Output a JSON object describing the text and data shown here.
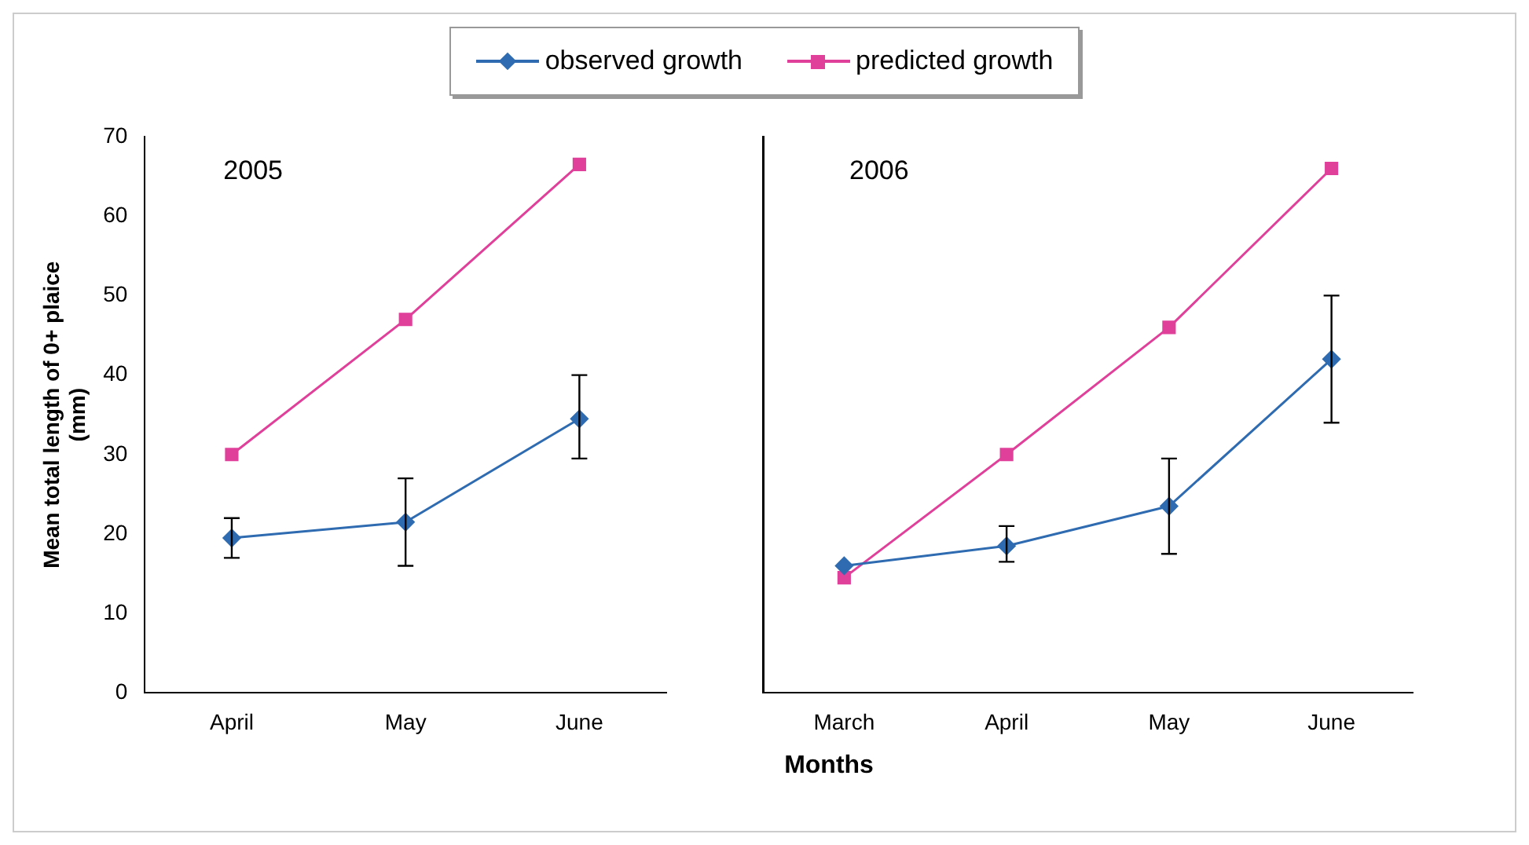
{
  "chart_data": [
    {
      "type": "line",
      "ylabel": "Mean total length of 0+ plaice (mm)",
      "categories": [
        "April",
        "May",
        "June"
      ],
      "series": [
        {
          "name": "observed growth",
          "color": "#2e6bb0",
          "marker": "diamond",
          "values": [
            19.5,
            21.5,
            34.5
          ],
          "errors": [
            [
              17,
              22
            ],
            [
              16,
              27
            ],
            [
              29.5,
              40
            ]
          ]
        },
        {
          "name": "predicted growth",
          "color": "#e0409a",
          "marker": "square",
          "values": [
            30,
            47,
            66.5
          ]
        }
      ],
      "ylim": [
        0,
        70
      ],
      "yticks": [
        0,
        10,
        20,
        30,
        40,
        50,
        60,
        70
      ],
      "grid": false,
      "legend": "top",
      "annotations": [
        "2005"
      ]
    },
    {
      "type": "line",
      "xlabel": "Months",
      "categories": [
        "March",
        "April",
        "May",
        "June"
      ],
      "series": [
        {
          "color": "#2e6bb0",
          "marker": "diamond",
          "values": [
            16,
            18.5,
            23.5,
            42
          ],
          "errors": [
            null,
            [
              16.5,
              21
            ],
            [
              17.5,
              29.5
            ],
            [
              34,
              50
            ]
          ]
        },
        {
          "color": "#e0409a",
          "marker": "square",
          "values": [
            14.5,
            30,
            46,
            66
          ]
        }
      ],
      "ylim": [
        0,
        70
      ],
      "yticks": [
        0,
        10,
        20,
        30,
        40,
        50,
        60,
        70
      ],
      "grid": false,
      "tick_labels": "x",
      "annotations": [
        "2006"
      ]
    }
  ]
}
